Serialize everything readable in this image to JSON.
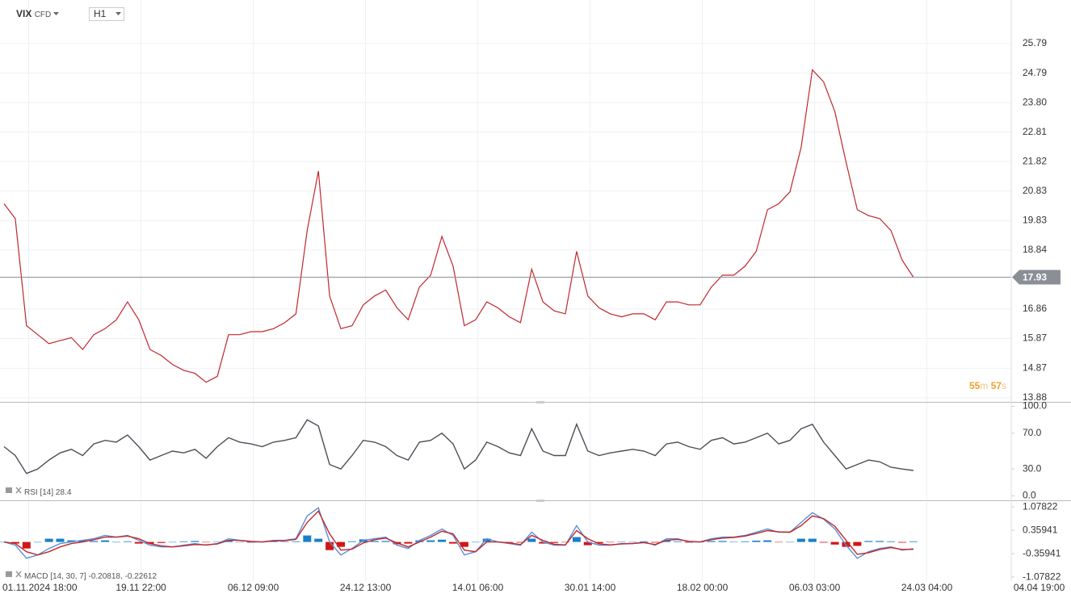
{
  "header": {
    "symbol": "VIX",
    "instrument": "CFD",
    "timeframe": "H1",
    "countdown": {
      "minutes": 55,
      "minutes_unit": "m",
      "seconds": 57,
      "seconds_unit": "s"
    }
  },
  "chart_data": [
    {
      "type": "line",
      "x": [
        0,
        1,
        2,
        3,
        4,
        5,
        6,
        7,
        8,
        9,
        10,
        11,
        12,
        13,
        14,
        15,
        16,
        17,
        18,
        19,
        20,
        21,
        22,
        23,
        24,
        25,
        26,
        27,
        28,
        29,
        30,
        31,
        32,
        33,
        34,
        35,
        36,
        37,
        38,
        39,
        40,
        41,
        42,
        43,
        44,
        45,
        46,
        47,
        48,
        49,
        50,
        51,
        52,
        53,
        54,
        55,
        56,
        57,
        58,
        59,
        60,
        61,
        62,
        63,
        64,
        65,
        66,
        67,
        68,
        69,
        70,
        71,
        72,
        73,
        74,
        75,
        76,
        77,
        78,
        79,
        80,
        81
      ],
      "xlim": [
        0,
        90
      ],
      "xticks": [
        {
          "value": 2.2,
          "label": "01.11.2024  18:00"
        },
        {
          "value": 12.2,
          "label": "19.11  22:00"
        },
        {
          "value": 22.2,
          "label": "06.12  09:00"
        },
        {
          "value": 32.2,
          "label": "24.12  13:00"
        },
        {
          "value": 42.2,
          "label": "14.01  06:00"
        },
        {
          "value": 52.2,
          "label": "30.01  14:00"
        },
        {
          "value": 62.2,
          "label": "18.02  00:00"
        },
        {
          "value": 72.2,
          "label": "06.03  03:00"
        },
        {
          "value": 82.2,
          "label": "24.03  04:00"
        },
        {
          "value": 92.2,
          "label": "04.04  19:00"
        }
      ],
      "series": [
        {
          "name": "VIX",
          "color": "#c0272d",
          "values": [
            20.4,
            19.9,
            16.3,
            16.0,
            15.7,
            15.8,
            15.9,
            15.5,
            16.0,
            16.2,
            16.5,
            17.1,
            16.5,
            15.5,
            15.3,
            15.0,
            14.8,
            14.7,
            14.4,
            14.6,
            16.0,
            16.0,
            16.1,
            16.1,
            16.2,
            16.4,
            16.7,
            19.5,
            21.5,
            17.3,
            16.2,
            16.3,
            17.0,
            17.3,
            17.5,
            16.9,
            16.5,
            17.6,
            18.0,
            19.3,
            18.3,
            16.3,
            16.5,
            17.1,
            16.9,
            16.6,
            16.4,
            18.2,
            17.1,
            16.8,
            16.7,
            18.8,
            17.3,
            16.9,
            16.7,
            16.6,
            16.7,
            16.7,
            16.5,
            17.1,
            17.1,
            17.0,
            17.0,
            17.6,
            18.0,
            18.0,
            18.3,
            18.8,
            20.2,
            20.4,
            20.8,
            22.3,
            24.9,
            24.5,
            23.5,
            21.8,
            20.2,
            20.0,
            19.9,
            19.5,
            18.5,
            17.93
          ]
        }
      ],
      "last_price": 17.93,
      "ylim": [
        13.74,
        27.25
      ],
      "yticks": [
        13.88,
        14.87,
        15.87,
        16.86,
        18.84,
        19.83,
        20.83,
        21.82,
        22.81,
        {
          "value": 23.8,
          "label": "23.80"
        },
        24.79,
        25.79
      ],
      "grid": true
    },
    {
      "type": "line",
      "series": [
        {
          "name": "RSI [14]",
          "color": "#4a5057",
          "values": [
            55,
            45,
            25,
            30,
            40,
            48,
            52,
            45,
            58,
            62,
            60,
            68,
            55,
            40,
            45,
            50,
            48,
            52,
            42,
            55,
            65,
            60,
            58,
            55,
            60,
            62,
            65,
            85,
            78,
            35,
            30,
            45,
            62,
            60,
            55,
            45,
            40,
            60,
            62,
            70,
            58,
            30,
            40,
            60,
            55,
            48,
            45,
            75,
            50,
            45,
            45,
            80,
            50,
            45,
            48,
            50,
            52,
            50,
            45,
            58,
            60,
            55,
            52,
            62,
            65,
            58,
            60,
            65,
            70,
            58,
            62,
            75,
            80,
            60,
            45,
            30,
            35,
            40,
            38,
            32,
            30,
            28.4
          ]
        }
      ],
      "ylim": [
        -5,
        105
      ],
      "yticks": [
        {
          "value": 0,
          "label": "0.0"
        },
        {
          "value": 30,
          "label": "30.0"
        },
        {
          "value": 70,
          "label": "70.0"
        },
        {
          "value": 100,
          "label": "100.0"
        }
      ]
    },
    {
      "type": "line",
      "name": "MACD [14, 30, 7]",
      "series": [
        {
          "type": "bar",
          "color": "#1a7fc9",
          "negative_color": "#d41515",
          "values": [
            0,
            -0.05,
            -0.2,
            0,
            0.1,
            0.1,
            0.05,
            0.05,
            0.03,
            0.05,
            0,
            0.02,
            -0.05,
            -0.05,
            -0.03,
            0,
            0.02,
            0.03,
            -0.01,
            0.01,
            0.05,
            0,
            -0.02,
            0,
            0.02,
            0.01,
            0.02,
            0.2,
            0.1,
            -0.25,
            -0.15,
            0.02,
            0.08,
            0.03,
            0.03,
            -0.07,
            -0.05,
            0.05,
            0.05,
            0.07,
            -0.05,
            -0.15,
            0,
            0.1,
            0,
            -0.02,
            -0.02,
            0.1,
            -0.05,
            -0.03,
            -0.01,
            0.15,
            -0.1,
            -0.04,
            -0.01,
            0.01,
            0,
            0.02,
            -0.02,
            0.05,
            0.02,
            -0.02,
            0,
            0.03,
            0.03,
            0.01,
            0.02,
            0.04,
            0.05,
            -0.01,
            0,
            0.1,
            0.1,
            -0.02,
            -0.08,
            -0.15,
            -0.12,
            0.03,
            0.03,
            0.02,
            -0.02,
            0.02
          ]
        },
        {
          "color": "#5b8fd6",
          "values": [
            0.0,
            -0.1,
            -0.5,
            -0.4,
            -0.2,
            -0.05,
            0.0,
            0.05,
            0.1,
            0.2,
            0.15,
            0.2,
            0.05,
            -0.1,
            -0.15,
            -0.15,
            -0.1,
            -0.05,
            -0.1,
            -0.05,
            0.1,
            0.05,
            0.0,
            0.0,
            0.05,
            0.05,
            0.1,
            0.8,
            1.05,
            0.0,
            -0.4,
            -0.2,
            0.05,
            0.1,
            0.15,
            -0.1,
            -0.2,
            0.05,
            0.2,
            0.4,
            0.2,
            -0.4,
            -0.3,
            0.1,
            0.0,
            -0.05,
            -0.1,
            0.3,
            0.0,
            -0.1,
            -0.1,
            0.5,
            0.0,
            -0.1,
            -0.1,
            -0.05,
            -0.05,
            0.0,
            -0.1,
            0.1,
            0.1,
            0.0,
            0.0,
            0.1,
            0.15,
            0.15,
            0.2,
            0.3,
            0.4,
            0.3,
            0.3,
            0.6,
            0.9,
            0.7,
            0.4,
            -0.1,
            -0.5,
            -0.3,
            -0.2,
            -0.15,
            -0.25,
            -0.20818
          ]
        },
        {
          "color": "#c0272d",
          "values": [
            0.0,
            -0.05,
            -0.3,
            -0.4,
            -0.3,
            -0.15,
            -0.05,
            0.0,
            0.07,
            0.15,
            0.15,
            0.18,
            0.1,
            -0.05,
            -0.12,
            -0.15,
            -0.12,
            -0.08,
            -0.09,
            -0.06,
            0.05,
            0.05,
            0.02,
            0.0,
            0.03,
            0.04,
            0.08,
            0.6,
            0.95,
            0.25,
            -0.25,
            -0.22,
            -0.03,
            0.07,
            0.12,
            -0.03,
            -0.15,
            0.0,
            0.15,
            0.33,
            0.25,
            -0.25,
            -0.3,
            0.0,
            0.0,
            -0.03,
            -0.08,
            0.2,
            0.05,
            -0.07,
            -0.09,
            0.35,
            0.1,
            -0.06,
            -0.09,
            -0.06,
            -0.05,
            -0.02,
            -0.08,
            0.05,
            0.08,
            0.02,
            0.0,
            0.07,
            0.12,
            0.14,
            0.18,
            0.26,
            0.35,
            0.31,
            0.3,
            0.5,
            0.8,
            0.72,
            0.48,
            0.05,
            -0.38,
            -0.33,
            -0.23,
            -0.17,
            -0.23,
            -0.22612
          ]
        }
      ],
      "ylim": [
        -1.2,
        1.23
      ],
      "yticks": [
        -1.07822,
        -0.35941,
        0.35941,
        1.07822
      ]
    }
  ]
}
